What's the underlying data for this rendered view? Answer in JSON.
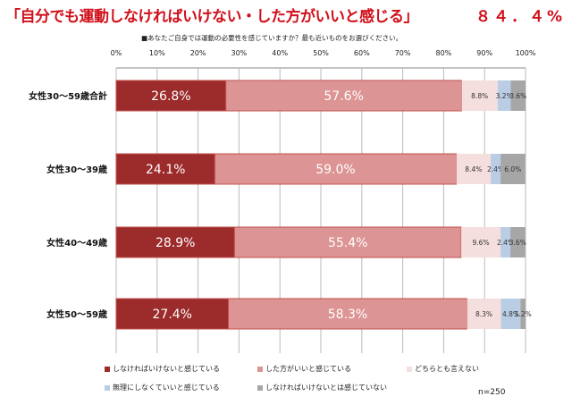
{
  "title": "「自分でも運動しなければいけない・した方がいいと感じる」",
  "headline_value": "８４．４%",
  "question": "■あなたご自身では運動の必要性を感じていますか？最も近いものをお選びください。",
  "sample_size": "n=250",
  "chart_data": {
    "type": "bar",
    "orientation": "horizontal",
    "stacked": true,
    "categories": [
      "女性30～59歳合計",
      "女性30～39歳",
      "女性40～49歳",
      "女性50～59歳"
    ],
    "x_ticks": [
      "0%",
      "10%",
      "20%",
      "30%",
      "40%",
      "50%",
      "60%",
      "70%",
      "80%",
      "90%",
      "100%"
    ],
    "xlim": [
      0,
      100
    ],
    "grid": true,
    "legend_position": "bottom",
    "series": [
      {
        "name": "しなければいけないと感じている",
        "color": "#9c2b2b",
        "values": [
          26.8,
          24.1,
          28.9,
          27.4
        ]
      },
      {
        "name": "した方がいいと感じている",
        "color": "#dc9494",
        "values": [
          57.6,
          59.0,
          55.4,
          58.3
        ]
      },
      {
        "name": "どちらとも言えない",
        "color": "#f5dede",
        "values": [
          8.8,
          8.4,
          9.6,
          8.3
        ]
      },
      {
        "name": "無理にしなくていいと感じている",
        "color": "#b9cde5",
        "values": [
          3.2,
          2.4,
          2.4,
          4.8
        ]
      },
      {
        "name": "しなければいけないとは感じていない",
        "color": "#a6a6a6",
        "values": [
          3.6,
          6.0,
          3.6,
          1.2
        ]
      }
    ]
  }
}
